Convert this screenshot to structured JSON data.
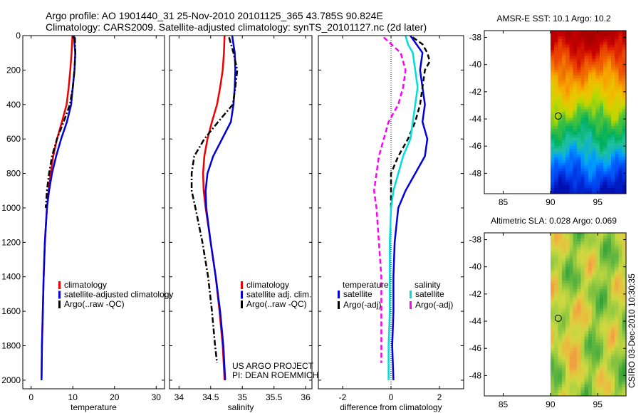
{
  "header": {
    "title_line1": "Argo profile: AO 1901440_31 25-Nov-2010 20101125_365 43.785S 90.824E",
    "title_line2": "Climatology: CARS2009. Satellite-adjusted climatology: synTS_20101127.nc (2d later)"
  },
  "chart_data": [
    {
      "id": "temperature",
      "type": "line",
      "xlabel": "temperature",
      "ylabel": "",
      "xlim": [
        -2,
        32
      ],
      "ylim": [
        2050,
        0
      ],
      "xticks": [
        0,
        10,
        20,
        30
      ],
      "xtick_labels": [
        "0",
        "10",
        "20",
        "30"
      ],
      "yticks": [
        0,
        200,
        400,
        600,
        800,
        1000,
        1200,
        1400,
        1600,
        1800,
        2000
      ],
      "ytick_labels": [
        "0",
        "200",
        "400",
        "600",
        "800",
        "1000",
        "1200",
        "1400",
        "1600",
        "1800",
        "2000"
      ],
      "legend": {
        "position": "bottom-right",
        "entries": [
          {
            "label": "climatology",
            "color": "#ee0000"
          },
          {
            "label": "satellite-adjusted climatology",
            "color": "#0000dd"
          },
          {
            "label": "Argo(..raw -QC)",
            "color": "#000000"
          }
        ]
      },
      "series": [
        {
          "name": "climatology",
          "color": "#ee0000",
          "style": "solid",
          "width": 2.5,
          "depth": [
            0,
            100,
            200,
            300,
            400,
            500,
            600,
            700,
            800,
            900,
            1000,
            1200,
            1400,
            1600,
            1800,
            2000
          ],
          "values": [
            9.9,
            9.7,
            9.4,
            9.0,
            8.5,
            7.4,
            6.2,
            5.3,
            4.7,
            4.2,
            3.8,
            3.3,
            3.0,
            2.8,
            2.6,
            2.5
          ]
        },
        {
          "name": "satellite-adjusted climatology",
          "color": "#0000dd",
          "style": "solid",
          "width": 2.5,
          "depth": [
            0,
            50,
            100,
            200,
            300,
            400,
            500,
            600,
            700,
            800,
            900,
            1000,
            1200,
            1400,
            1600,
            1800,
            2000
          ],
          "values": [
            10.3,
            10.4,
            10.6,
            10.4,
            10.0,
            9.6,
            8.6,
            7.2,
            6.0,
            5.0,
            4.3,
            3.8,
            3.3,
            3.0,
            2.8,
            2.6,
            2.5
          ]
        },
        {
          "name": "Argo(..raw -QC)",
          "color": "#000000",
          "style": "dashdot",
          "width": 2.5,
          "depth": [
            10,
            100,
            200,
            300,
            400,
            500,
            600,
            700,
            800,
            900,
            1000
          ],
          "values": [
            10.5,
            10.6,
            10.4,
            10.0,
            9.3,
            7.8,
            6.2,
            5.0,
            4.3,
            3.8,
            3.5
          ]
        }
      ]
    },
    {
      "id": "salinity",
      "type": "line",
      "xlabel": "salinity",
      "ylabel": "",
      "xlim": [
        33.85,
        36.1
      ],
      "ylim": [
        2050,
        0
      ],
      "xticks": [
        34,
        34.5,
        35,
        35.5,
        36
      ],
      "xtick_labels": [
        "34",
        "34.5",
        "35",
        "35.5",
        "36"
      ],
      "legend": {
        "position": "bottom-right",
        "entries": [
          {
            "label": "climatology",
            "color": "#ee0000"
          },
          {
            "label": "satellite adj. clim.",
            "color": "#0000dd"
          },
          {
            "label": "Argo(..raw -QC)",
            "color": "#000000"
          }
        ]
      },
      "series": [
        {
          "name": "climatology",
          "color": "#ee0000",
          "style": "solid",
          "width": 2.5,
          "depth": [
            0,
            100,
            200,
            300,
            400,
            500,
            600,
            700,
            800,
            900,
            1000,
            1200,
            1400,
            1600,
            1800,
            2000
          ],
          "values": [
            34.72,
            34.71,
            34.69,
            34.65,
            34.6,
            34.52,
            34.45,
            34.4,
            34.38,
            34.39,
            34.42,
            34.5,
            34.58,
            34.64,
            34.69,
            34.72
          ]
        },
        {
          "name": "satellite adj. clim.",
          "color": "#0000dd",
          "style": "solid",
          "width": 2.5,
          "depth": [
            0,
            50,
            100,
            200,
            300,
            400,
            500,
            600,
            700,
            800,
            900,
            1000,
            1200,
            1400,
            1600,
            1800,
            2000
          ],
          "values": [
            34.84,
            34.86,
            34.88,
            34.89,
            34.88,
            34.86,
            34.82,
            34.68,
            34.54,
            34.45,
            34.42,
            34.43,
            34.5,
            34.58,
            34.65,
            34.7,
            34.73
          ]
        },
        {
          "name": "Argo(..raw -QC)",
          "color": "#000000",
          "style": "dashdot",
          "width": 2.5,
          "depth": [
            10,
            100,
            200,
            300,
            400,
            500,
            600,
            700,
            800,
            900,
            1000,
            1200,
            1400,
            1600,
            1800,
            1900
          ],
          "values": [
            34.79,
            34.86,
            34.92,
            34.89,
            34.85,
            34.62,
            34.4,
            34.24,
            34.2,
            34.2,
            34.26,
            34.37,
            34.46,
            34.52,
            34.57,
            34.6
          ]
        }
      ]
    },
    {
      "id": "difference",
      "type": "line",
      "xlabel": "difference from climatology",
      "ylabel": "",
      "xlim": [
        -3,
        3
      ],
      "ylim": [
        2050,
        0
      ],
      "xticks": [
        -2,
        0,
        2
      ],
      "xtick_labels": [
        "-2",
        "0",
        "2"
      ],
      "legend": {
        "position": "bottom",
        "groups": [
          {
            "heading": "temperature",
            "entries": [
              {
                "label": "satellite",
                "color": "#0000dd"
              },
              {
                "label": "Argo(-adj)",
                "color": "#000000"
              }
            ]
          },
          {
            "heading": "salinity",
            "entries": [
              {
                "label": "satellite",
                "color": "#00dddd"
              },
              {
                "label": "Argo(-adj)",
                "color": "#ff00ff"
              }
            ]
          }
        ]
      },
      "series": [
        {
          "name": "temperature satellite",
          "color": "#0000dd",
          "style": "solid",
          "width": 2.5,
          "depth": [
            0,
            100,
            200,
            300,
            400,
            500,
            600,
            700,
            800,
            900,
            1000,
            1200,
            1400,
            1600,
            1800,
            2000
          ],
          "values": [
            0.8,
            1.3,
            1.2,
            1.3,
            1.4,
            1.3,
            1.5,
            1.4,
            1.0,
            0.6,
            0.3,
            0.15,
            0.1,
            0.1,
            0.05,
            0.1
          ]
        },
        {
          "name": "temperature Argo(-adj)",
          "color": "#000000",
          "style": "dashed",
          "width": 2.5,
          "depth": [
            10,
            50,
            100,
            150,
            200,
            300,
            400,
            500,
            600,
            700,
            800,
            900,
            1000
          ],
          "values": [
            0.9,
            1.3,
            1.5,
            1.6,
            1.4,
            1.3,
            1.2,
            1.0,
            0.7,
            0.3,
            0.0,
            0.0,
            0.0
          ]
        },
        {
          "name": "salinity satellite",
          "color": "#00dddd",
          "style": "solid",
          "width": 2.5,
          "depth": [
            0,
            50,
            100,
            200,
            300,
            400,
            500,
            600,
            700,
            800,
            900,
            1000,
            1200,
            1400,
            1600,
            1800,
            2000
          ],
          "values": [
            0.6,
            0.7,
            0.9,
            1.0,
            1.1,
            1.0,
            0.9,
            0.8,
            0.5,
            0.3,
            0.1,
            0.0,
            -0.05,
            -0.05,
            -0.05,
            -0.1,
            -0.1
          ]
        },
        {
          "name": "salinity Argo(-adj)",
          "color": "#ff00ff",
          "style": "dashed",
          "width": 2.5,
          "depth": [
            10,
            100,
            200,
            300,
            400,
            500,
            600,
            700,
            800,
            900,
            1000,
            1200,
            1400,
            1600,
            1800,
            1900
          ],
          "values": [
            -0.3,
            0.4,
            0.6,
            0.5,
            0.3,
            -0.1,
            -0.3,
            -0.5,
            -0.6,
            -0.7,
            -0.6,
            -0.5,
            -0.4,
            -0.4,
            -0.4,
            -0.4
          ]
        }
      ]
    },
    {
      "id": "sst-map",
      "type": "heatmap",
      "title": "AMSR-E SST: 10.1 Argo: 10.2",
      "xlim": [
        83,
        98
      ],
      "ylim": [
        -49.5,
        -37.5
      ],
      "xticks": [
        85,
        90,
        95
      ],
      "xtick_labels": [
        "85",
        "90",
        "95"
      ],
      "yticks": [
        -38,
        -40,
        -42,
        -44,
        -46,
        -48
      ],
      "ytick_labels": [
        "-38",
        "-40",
        "-42",
        "-44",
        "-46",
        "-48"
      ],
      "data_lon_range": [
        90,
        98
      ],
      "marker": {
        "lon": 90.824,
        "lat": -43.785
      },
      "colors_north_to_south": [
        "#a80000",
        "#c80000",
        "#e83a00",
        "#f07000",
        "#f8a800",
        "#e8c800",
        "#b8d800",
        "#40c040",
        "#00b060",
        "#20c0a0",
        "#00a0ff",
        "#0060ff",
        "#0030e0",
        "#0010b0"
      ]
    },
    {
      "id": "sla-map",
      "type": "heatmap",
      "title": "Altimetric SLA: 0.028 Argo: 0.069",
      "xlim": [
        83,
        98
      ],
      "ylim": [
        -49.5,
        -37.5
      ],
      "xticks": [
        85,
        90,
        95
      ],
      "xtick_labels": [
        "85",
        "90",
        "95"
      ],
      "yticks": [
        -38,
        -40,
        -42,
        -44,
        -46,
        -48
      ],
      "ytick_labels": [
        "-38",
        "-40",
        "-42",
        "-44",
        "-46",
        "-48"
      ],
      "data_lon_range": [
        90,
        98
      ],
      "marker": {
        "lon": 90.824,
        "lat": -43.785
      },
      "colors": [
        "#30a030",
        "#50b040",
        "#80c040",
        "#a8d040",
        "#d0d840",
        "#e8c040",
        "#f0a040"
      ]
    }
  ],
  "credits": {
    "project": "US ARGO PROJECT",
    "pi": "PI: DEAN ROEMMICH",
    "stamp": "CSIRO 03-Dec-2010 10:30:35"
  }
}
